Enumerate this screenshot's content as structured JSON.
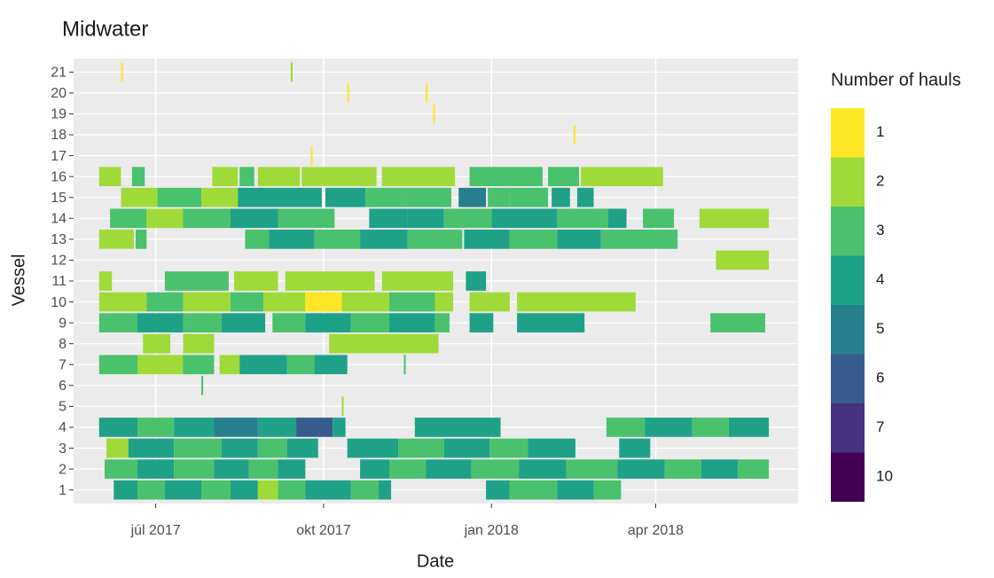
{
  "chart_data": {
    "type": "tile",
    "title": "Midwater",
    "x_label": "Date",
    "y_label": "Vessel",
    "xlim": [
      "2017-05-17",
      "2018-06-18"
    ],
    "xticks": [
      {
        "value": "2017-07-01",
        "label": "júl 2017"
      },
      {
        "value": "2017-10-01",
        "label": "okt 2017"
      },
      {
        "value": "2018-01-01",
        "label": "jan 2018"
      },
      {
        "value": "2018-04-01",
        "label": "apr 2018"
      }
    ],
    "categories": [
      "1",
      "2",
      "3",
      "4",
      "5",
      "6",
      "7",
      "8",
      "9",
      "10",
      "11",
      "12",
      "13",
      "14",
      "15",
      "16",
      "17",
      "18",
      "19",
      "20",
      "21"
    ],
    "grid": true,
    "legend": {
      "title": "Number of hauls",
      "levels": [
        1,
        2,
        3,
        4,
        5,
        6,
        7,
        10
      ],
      "colors": [
        "#fde725",
        "#a0da39",
        "#4ac16d",
        "#1fa187",
        "#277f8e",
        "#365c8d",
        "#46327e",
        "#440154"
      ]
    },
    "tiles": [
      [
        [
          "2017-06-08",
          "2017-06-20",
          4
        ],
        [
          "2017-06-21",
          "2017-07-05",
          3
        ],
        [
          "2017-07-06",
          "2017-07-25",
          4
        ],
        [
          "2017-07-26",
          "2017-08-10",
          3
        ],
        [
          "2017-08-11",
          "2017-08-25",
          4
        ],
        [
          "2017-08-26",
          "2017-09-05",
          2
        ],
        [
          "2017-09-06",
          "2017-09-20",
          3
        ],
        [
          "2017-09-21",
          "2017-10-15",
          4
        ],
        [
          "2017-10-16",
          "2017-10-30",
          3
        ],
        [
          "2017-10-31",
          "2017-11-06",
          4
        ],
        [
          "2017-12-29",
          "2018-01-10",
          4
        ],
        [
          "2018-01-11",
          "2018-02-05",
          3
        ],
        [
          "2018-02-06",
          "2018-02-25",
          4
        ],
        [
          "2018-02-26",
          "2018-03-12",
          3
        ]
      ],
      [
        [
          "2017-06-03",
          "2017-06-20",
          3
        ],
        [
          "2017-06-21",
          "2017-07-10",
          4
        ],
        [
          "2017-07-11",
          "2017-08-01",
          3
        ],
        [
          "2017-08-02",
          "2017-08-20",
          4
        ],
        [
          "2017-08-21",
          "2017-09-05",
          3
        ],
        [
          "2017-09-06",
          "2017-09-20",
          4
        ],
        [
          "2017-10-21",
          "2017-11-05",
          4
        ],
        [
          "2017-11-06",
          "2017-11-25",
          3
        ],
        [
          "2017-11-26",
          "2017-12-20",
          4
        ],
        [
          "2017-12-21",
          "2018-01-15",
          3
        ],
        [
          "2018-01-16",
          "2018-02-10",
          4
        ],
        [
          "2018-02-11",
          "2018-03-10",
          3
        ],
        [
          "2018-03-11",
          "2018-04-05",
          4
        ],
        [
          "2018-04-06",
          "2018-04-25",
          3
        ],
        [
          "2018-04-26",
          "2018-05-15",
          4
        ],
        [
          "2018-05-16",
          "2018-06-01",
          3
        ]
      ],
      [
        [
          "2017-06-04",
          "2017-06-15",
          2
        ],
        [
          "2017-06-16",
          "2017-07-10",
          4
        ],
        [
          "2017-07-11",
          "2017-08-05",
          3
        ],
        [
          "2017-08-06",
          "2017-08-25",
          4
        ],
        [
          "2017-08-26",
          "2017-09-10",
          3
        ],
        [
          "2017-09-11",
          "2017-09-27",
          4
        ],
        [
          "2017-10-14",
          "2017-11-10",
          4
        ],
        [
          "2017-11-11",
          "2017-12-05",
          3
        ],
        [
          "2017-12-06",
          "2017-12-30",
          4
        ],
        [
          "2017-12-31",
          "2018-01-20",
          3
        ],
        [
          "2018-01-21",
          "2018-02-15",
          4
        ],
        [
          "2018-03-12",
          "2018-03-28",
          4
        ]
      ],
      [
        [
          "2017-05-31",
          "2017-06-20",
          4
        ],
        [
          "2017-06-21",
          "2017-07-10",
          3
        ],
        [
          "2017-07-11",
          "2017-08-01",
          4
        ],
        [
          "2017-08-02",
          "2017-08-25",
          5
        ],
        [
          "2017-08-26",
          "2017-09-15",
          4
        ],
        [
          "2017-09-16",
          "2017-10-05",
          6
        ],
        [
          "2017-10-06",
          "2017-10-12",
          4
        ],
        [
          "2017-11-20",
          "2018-01-05",
          4
        ],
        [
          "2018-03-05",
          "2018-03-25",
          3
        ],
        [
          "2018-03-26",
          "2018-04-20",
          4
        ],
        [
          "2018-04-21",
          "2018-05-10",
          3
        ],
        [
          "2018-05-11",
          "2018-06-01",
          4
        ]
      ],
      [
        [
          "2017-10-11",
          "2017-10-11",
          2
        ]
      ],
      [
        [
          "2017-07-26",
          "2017-07-26",
          3
        ]
      ],
      [
        [
          "2017-05-31",
          "2017-06-20",
          3
        ],
        [
          "2017-06-21",
          "2017-07-15",
          2
        ],
        [
          "2017-07-16",
          "2017-08-01",
          3
        ],
        [
          "2017-08-05",
          "2017-08-15",
          2
        ],
        [
          "2017-08-16",
          "2017-09-10",
          4
        ],
        [
          "2017-09-11",
          "2017-09-25",
          3
        ],
        [
          "2017-09-26",
          "2017-10-13",
          4
        ],
        [
          "2017-11-14",
          "2017-11-14",
          3
        ]
      ],
      [
        [
          "2017-06-24",
          "2017-07-08",
          2
        ],
        [
          "2017-07-16",
          "2017-08-01",
          2
        ],
        [
          "2017-10-04",
          "2017-12-02",
          2
        ]
      ],
      [
        [
          "2017-05-31",
          "2017-06-20",
          3
        ],
        [
          "2017-06-21",
          "2017-07-15",
          4
        ],
        [
          "2017-07-16",
          "2017-08-05",
          3
        ],
        [
          "2017-08-06",
          "2017-08-29",
          4
        ],
        [
          "2017-09-03",
          "2017-09-20",
          3
        ],
        [
          "2017-09-21",
          "2017-10-15",
          4
        ],
        [
          "2017-10-16",
          "2017-11-05",
          3
        ],
        [
          "2017-11-06",
          "2017-11-30",
          4
        ],
        [
          "2017-12-01",
          "2017-12-08",
          3
        ],
        [
          "2017-12-20",
          "2018-01-01",
          4
        ],
        [
          "2018-01-15",
          "2018-02-20",
          4
        ],
        [
          "2018-05-01",
          "2018-05-30",
          3
        ]
      ],
      [
        [
          "2017-05-31",
          "2017-06-25",
          2
        ],
        [
          "2017-06-26",
          "2017-07-15",
          3
        ],
        [
          "2017-07-16",
          "2017-08-10",
          2
        ],
        [
          "2017-08-11",
          "2017-08-28",
          3
        ],
        [
          "2017-08-29",
          "2017-09-20",
          2
        ],
        [
          "2017-09-21",
          "2017-10-10",
          1
        ],
        [
          "2017-10-11",
          "2017-11-05",
          2
        ],
        [
          "2017-11-06",
          "2017-11-30",
          3
        ],
        [
          "2017-12-01",
          "2017-12-10",
          2
        ],
        [
          "2017-12-20",
          "2018-01-10",
          2
        ],
        [
          "2018-01-15",
          "2018-03-20",
          2
        ]
      ],
      [
        [
          "2017-05-31",
          "2017-06-06",
          2
        ],
        [
          "2017-07-06",
          "2017-08-09",
          3
        ],
        [
          "2017-08-13",
          "2017-09-05",
          2
        ],
        [
          "2017-09-10",
          "2017-10-28",
          2
        ],
        [
          "2017-11-02",
          "2017-12-10",
          2
        ],
        [
          "2017-12-18",
          "2017-12-28",
          4
        ]
      ],
      [
        [
          "2018-05-04",
          "2018-06-01",
          2
        ]
      ],
      [
        [
          "2017-05-31",
          "2017-06-18",
          2
        ],
        [
          "2017-06-20",
          "2017-06-25",
          3
        ],
        [
          "2017-08-19",
          "2017-08-31",
          3
        ],
        [
          "2017-09-01",
          "2017-09-25",
          4
        ],
        [
          "2017-09-26",
          "2017-10-20",
          3
        ],
        [
          "2017-10-21",
          "2017-11-15",
          4
        ],
        [
          "2017-11-16",
          "2017-12-15",
          3
        ],
        [
          "2017-12-17",
          "2018-01-10",
          4
        ],
        [
          "2018-01-11",
          "2018-02-05",
          3
        ],
        [
          "2018-02-06",
          "2018-03-01",
          4
        ],
        [
          "2018-03-02",
          "2018-04-12",
          3
        ]
      ],
      [
        [
          "2017-06-06",
          "2017-06-25",
          3
        ],
        [
          "2017-06-26",
          "2017-07-15",
          2
        ],
        [
          "2017-07-16",
          "2017-08-10",
          3
        ],
        [
          "2017-08-11",
          "2017-09-05",
          4
        ],
        [
          "2017-09-06",
          "2017-10-06",
          3
        ],
        [
          "2017-10-26",
          "2017-11-15",
          4
        ],
        [
          "2017-11-16",
          "2017-12-05",
          4
        ],
        [
          "2017-12-06",
          "2017-12-31",
          3
        ],
        [
          "2018-01-01",
          "2018-02-05",
          4
        ],
        [
          "2018-02-06",
          "2018-03-05",
          3
        ],
        [
          "2018-03-06",
          "2018-03-15",
          4
        ],
        [
          "2018-03-25",
          "2018-04-10",
          3
        ],
        [
          "2018-04-25",
          "2018-06-01",
          2
        ]
      ],
      [
        [
          "2017-06-12",
          "2017-07-01",
          2
        ],
        [
          "2017-07-02",
          "2017-07-25",
          3
        ],
        [
          "2017-07-26",
          "2017-08-14",
          2
        ],
        [
          "2017-08-15",
          "2017-09-29",
          4
        ],
        [
          "2017-10-02",
          "2017-10-23",
          4
        ],
        [
          "2017-10-24",
          "2017-11-12",
          3
        ],
        [
          "2017-11-13",
          "2017-12-09",
          3
        ],
        [
          "2017-12-14",
          "2017-12-28",
          5
        ],
        [
          "2017-12-30",
          "2018-01-10",
          3
        ],
        [
          "2018-01-11",
          "2018-01-31",
          3
        ],
        [
          "2018-02-03",
          "2018-02-12",
          4
        ],
        [
          "2018-02-17",
          "2018-02-25",
          4
        ]
      ],
      [
        [
          "2017-05-31",
          "2017-06-11",
          2
        ],
        [
          "2017-06-18",
          "2017-06-24",
          3
        ],
        [
          "2017-08-01",
          "2017-08-14",
          2
        ],
        [
          "2017-08-16",
          "2017-08-23",
          3
        ],
        [
          "2017-08-26",
          "2017-09-17",
          2
        ],
        [
          "2017-09-19",
          "2017-10-29",
          2
        ],
        [
          "2017-11-02",
          "2017-12-11",
          2
        ],
        [
          "2017-12-20",
          "2018-01-28",
          3
        ],
        [
          "2018-02-01",
          "2018-02-17",
          3
        ],
        [
          "2018-02-19",
          "2018-04-04",
          2
        ]
      ],
      [
        [
          "2017-09-24",
          "2017-09-24",
          1
        ]
      ],
      [
        [
          "2018-02-15",
          "2018-02-15",
          1
        ]
      ],
      [
        [
          "2017-11-30",
          "2017-11-30",
          1
        ]
      ],
      [
        [
          "2017-10-14",
          "2017-10-14",
          1
        ],
        [
          "2017-11-26",
          "2017-11-26",
          1
        ]
      ],
      [
        [
          "2017-06-12",
          "2017-06-12",
          1
        ],
        [
          "2017-09-13",
          "2017-09-13",
          2
        ]
      ]
    ]
  }
}
